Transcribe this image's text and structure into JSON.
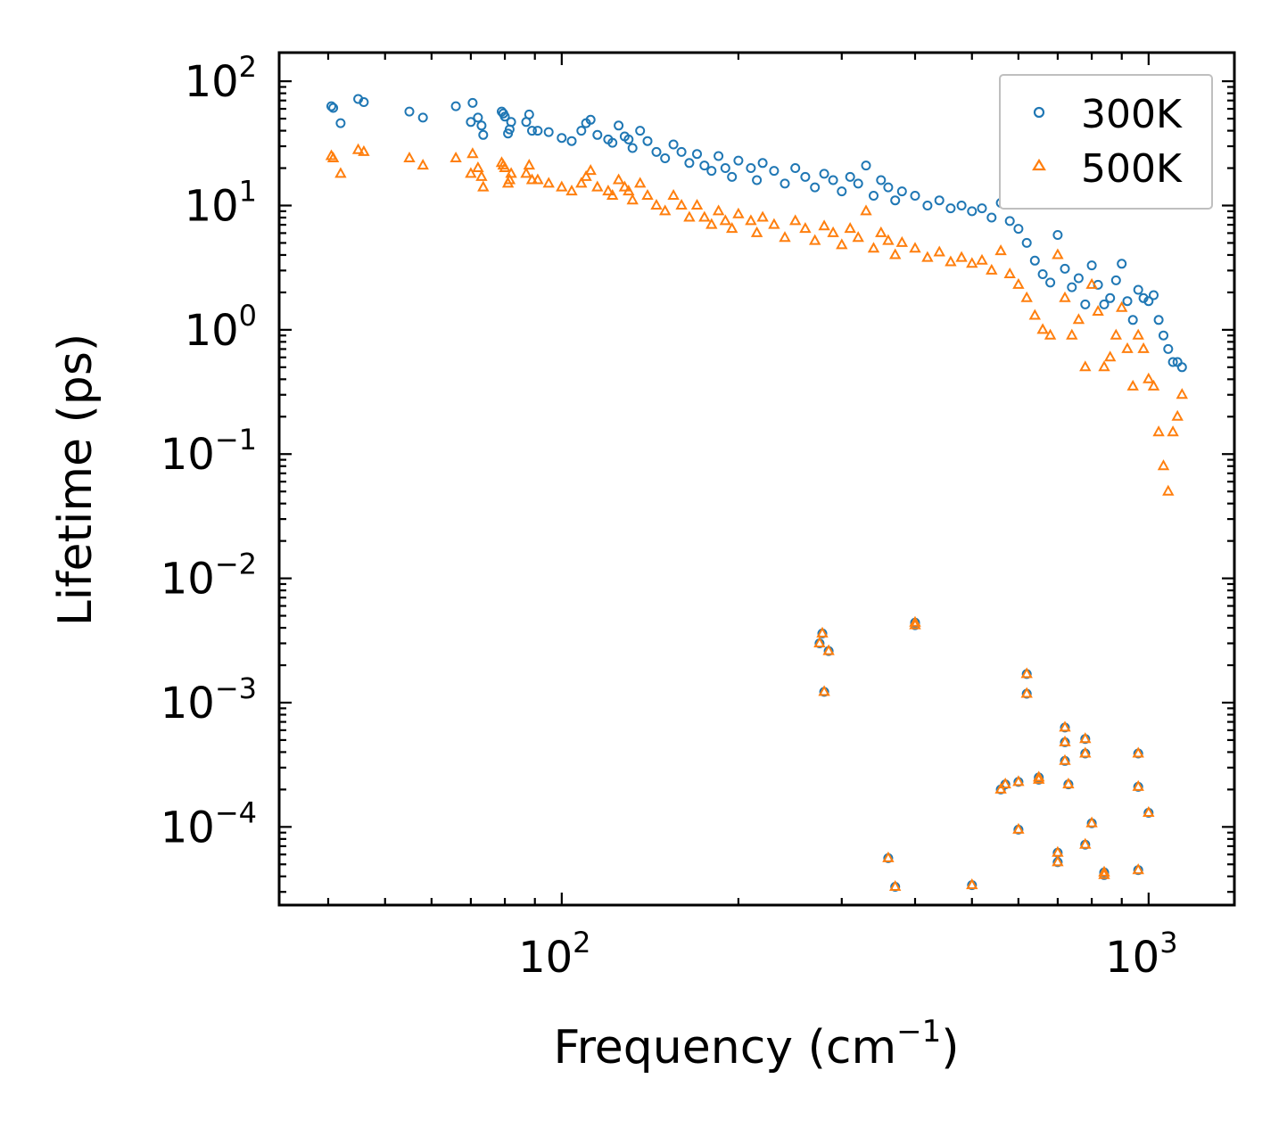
{
  "chart_data": {
    "type": "scatter",
    "title": "",
    "xlabel": "Frequency (cm",
    "xlabel_sup": "−1",
    "xlabel_close": ")",
    "ylabel": "Lifetime (ps)",
    "xscale": "log",
    "yscale": "log",
    "xlim": [
      33,
      1400
    ],
    "ylim": [
      2.35e-05,
      170
    ],
    "legend_position": "top-right",
    "x_ticks": [
      {
        "value": 100,
        "base": "10",
        "exp": "2"
      },
      {
        "value": 1000,
        "base": "10",
        "exp": "3"
      }
    ],
    "y_ticks": [
      {
        "value": 100,
        "base": "10",
        "exp": "2"
      },
      {
        "value": 10,
        "base": "10",
        "exp": "1"
      },
      {
        "value": 1,
        "base": "10",
        "exp": "0"
      },
      {
        "value": 0.1,
        "base": "10",
        "exp": "−1"
      },
      {
        "value": 0.01,
        "base": "10",
        "exp": "−2"
      },
      {
        "value": 0.001,
        "base": "10",
        "exp": "−3"
      },
      {
        "value": 0.0001,
        "base": "10",
        "exp": "−4"
      }
    ],
    "series": [
      {
        "name": "300K",
        "marker": "circle",
        "color": "#1f77b4",
        "points": [
          [
            40.5,
            63
          ],
          [
            40.8,
            61
          ],
          [
            42,
            46
          ],
          [
            45,
            72
          ],
          [
            46,
            68
          ],
          [
            55,
            57
          ],
          [
            58,
            51
          ],
          [
            66,
            63
          ],
          [
            70,
            47
          ],
          [
            70.5,
            67
          ],
          [
            72,
            51
          ],
          [
            73,
            44
          ],
          [
            73.5,
            37
          ],
          [
            79,
            57
          ],
          [
            79.5,
            55
          ],
          [
            80,
            52
          ],
          [
            81,
            38
          ],
          [
            81.5,
            41
          ],
          [
            82,
            47
          ],
          [
            87,
            47
          ],
          [
            88,
            54
          ],
          [
            89,
            40
          ],
          [
            91,
            40
          ],
          [
            95,
            39
          ],
          [
            100,
            35
          ],
          [
            104,
            33
          ],
          [
            108,
            40
          ],
          [
            110,
            46
          ],
          [
            112,
            49
          ],
          [
            115,
            37
          ],
          [
            120,
            34
          ],
          [
            122,
            32
          ],
          [
            125,
            44
          ],
          [
            128,
            36
          ],
          [
            130,
            34
          ],
          [
            132,
            29
          ],
          [
            136,
            40
          ],
          [
            140,
            33
          ],
          [
            145,
            27
          ],
          [
            150,
            24
          ],
          [
            155,
            31
          ],
          [
            160,
            27
          ],
          [
            165,
            22
          ],
          [
            170,
            26
          ],
          [
            175,
            21
          ],
          [
            180,
            19
          ],
          [
            185,
            25
          ],
          [
            190,
            20
          ],
          [
            195,
            17
          ],
          [
            200,
            23
          ],
          [
            210,
            20
          ],
          [
            215,
            16
          ],
          [
            220,
            22
          ],
          [
            230,
            19
          ],
          [
            240,
            15
          ],
          [
            250,
            20
          ],
          [
            260,
            17
          ],
          [
            270,
            14
          ],
          [
            280,
            18
          ],
          [
            290,
            16
          ],
          [
            300,
            13
          ],
          [
            310,
            17
          ],
          [
            320,
            15
          ],
          [
            330,
            21
          ],
          [
            340,
            12
          ],
          [
            350,
            16
          ],
          [
            360,
            14
          ],
          [
            370,
            11
          ],
          [
            380,
            13
          ],
          [
            400,
            12
          ],
          [
            420,
            10
          ],
          [
            440,
            11
          ],
          [
            460,
            9.5
          ],
          [
            480,
            10
          ],
          [
            500,
            9
          ],
          [
            520,
            9.5
          ],
          [
            540,
            8
          ],
          [
            560,
            10.5
          ],
          [
            580,
            7.5
          ],
          [
            600,
            6.5
          ],
          [
            620,
            5
          ],
          [
            640,
            3.6
          ],
          [
            660,
            2.8
          ],
          [
            680,
            2.4
          ],
          [
            700,
            5.8
          ],
          [
            720,
            3.1
          ],
          [
            740,
            2.2
          ],
          [
            760,
            2.6
          ],
          [
            780,
            1.6
          ],
          [
            800,
            3.3
          ],
          [
            820,
            2.3
          ],
          [
            840,
            1.6
          ],
          [
            860,
            1.8
          ],
          [
            880,
            2.5
          ],
          [
            900,
            3.4
          ],
          [
            920,
            1.7
          ],
          [
            940,
            1.2
          ],
          [
            960,
            2.1
          ],
          [
            980,
            1.8
          ],
          [
            1000,
            1.7
          ],
          [
            1020,
            1.9
          ],
          [
            1040,
            1.2
          ],
          [
            1060,
            0.9
          ],
          [
            1080,
            0.7
          ],
          [
            1100,
            0.55
          ],
          [
            1120,
            0.55
          ],
          [
            1140,
            0.5
          ],
          [
            275,
            0.003
          ],
          [
            278,
            0.0036
          ],
          [
            285,
            0.0026
          ],
          [
            280,
            0.00122
          ],
          [
            400,
            0.0044
          ],
          [
            400,
            0.0042
          ],
          [
            360,
            5.6e-05
          ],
          [
            370,
            3.3e-05
          ],
          [
            500,
            3.4e-05
          ],
          [
            560,
            0.0002
          ],
          [
            570,
            0.00022
          ],
          [
            600,
            0.00023
          ],
          [
            600,
            9.5e-05
          ],
          [
            620,
            0.0017
          ],
          [
            620,
            0.00118
          ],
          [
            650,
            0.00025
          ],
          [
            650,
            0.00024
          ],
          [
            700,
            6.2e-05
          ],
          [
            700,
            5.2e-05
          ],
          [
            720,
            0.00063
          ],
          [
            720,
            0.00048
          ],
          [
            720,
            0.00034
          ],
          [
            730,
            0.00022
          ],
          [
            780,
            0.00051
          ],
          [
            780,
            0.00039
          ],
          [
            780,
            7.2e-05
          ],
          [
            800,
            0.000107
          ],
          [
            840,
            4.3e-05
          ],
          [
            840,
            4.1e-05
          ],
          [
            960,
            0.00039
          ],
          [
            960,
            0.00021
          ],
          [
            960,
            4.5e-05
          ],
          [
            1000,
            0.00013
          ]
        ]
      },
      {
        "name": "500K",
        "marker": "triangle",
        "color": "#ff7f0e",
        "points": [
          [
            40.5,
            25
          ],
          [
            40.8,
            24
          ],
          [
            42,
            18
          ],
          [
            45,
            28
          ],
          [
            46,
            27
          ],
          [
            55,
            24
          ],
          [
            58,
            21
          ],
          [
            66,
            24
          ],
          [
            70,
            18
          ],
          [
            70.5,
            26
          ],
          [
            72,
            20
          ],
          [
            73,
            17
          ],
          [
            73.5,
            14
          ],
          [
            79,
            22
          ],
          [
            79.5,
            21
          ],
          [
            80,
            20
          ],
          [
            81,
            15
          ],
          [
            81.5,
            16
          ],
          [
            82,
            18
          ],
          [
            87,
            18
          ],
          [
            88,
            21
          ],
          [
            89,
            16
          ],
          [
            91,
            16
          ],
          [
            95,
            15
          ],
          [
            100,
            14
          ],
          [
            104,
            13
          ],
          [
            108,
            15
          ],
          [
            110,
            17
          ],
          [
            112,
            19
          ],
          [
            115,
            14
          ],
          [
            120,
            13
          ],
          [
            122,
            12
          ],
          [
            125,
            16
          ],
          [
            128,
            14
          ],
          [
            130,
            13
          ],
          [
            132,
            11
          ],
          [
            136,
            15
          ],
          [
            140,
            12
          ],
          [
            145,
            10
          ],
          [
            150,
            9
          ],
          [
            155,
            12
          ],
          [
            160,
            10
          ],
          [
            165,
            8
          ],
          [
            170,
            10
          ],
          [
            175,
            8
          ],
          [
            180,
            7
          ],
          [
            185,
            9
          ],
          [
            190,
            7.5
          ],
          [
            195,
            6.5
          ],
          [
            200,
            8.5
          ],
          [
            210,
            7.5
          ],
          [
            215,
            6
          ],
          [
            220,
            8
          ],
          [
            230,
            7
          ],
          [
            240,
            5.5
          ],
          [
            250,
            7.5
          ],
          [
            260,
            6.5
          ],
          [
            270,
            5.2
          ],
          [
            280,
            6.8
          ],
          [
            290,
            6
          ],
          [
            300,
            4.8
          ],
          [
            310,
            6.5
          ],
          [
            320,
            5.5
          ],
          [
            330,
            9.0
          ],
          [
            340,
            4.5
          ],
          [
            350,
            6
          ],
          [
            360,
            5.2
          ],
          [
            370,
            4
          ],
          [
            380,
            5
          ],
          [
            400,
            4.5
          ],
          [
            420,
            3.8
          ],
          [
            440,
            4.2
          ],
          [
            460,
            3.5
          ],
          [
            480,
            3.8
          ],
          [
            500,
            3.4
          ],
          [
            520,
            3.6
          ],
          [
            540,
            3
          ],
          [
            560,
            4.3
          ],
          [
            580,
            2.8
          ],
          [
            600,
            2.3
          ],
          [
            620,
            1.8
          ],
          [
            640,
            1.3
          ],
          [
            660,
            1.0
          ],
          [
            680,
            0.9
          ],
          [
            700,
            4.0
          ],
          [
            720,
            1.8
          ],
          [
            740,
            0.9
          ],
          [
            760,
            1.2
          ],
          [
            780,
            0.5
          ],
          [
            800,
            2.3
          ],
          [
            820,
            1.4
          ],
          [
            840,
            0.5
          ],
          [
            860,
            0.6
          ],
          [
            880,
            0.9
          ],
          [
            900,
            1.5
          ],
          [
            920,
            0.7
          ],
          [
            940,
            0.35
          ],
          [
            960,
            0.9
          ],
          [
            980,
            0.7
          ],
          [
            1000,
            0.4
          ],
          [
            1020,
            0.35
          ],
          [
            1040,
            0.15
          ],
          [
            1060,
            0.08
          ],
          [
            1080,
            0.05
          ],
          [
            1100,
            0.15
          ],
          [
            1120,
            0.2
          ],
          [
            1140,
            0.3
          ],
          [
            275,
            0.003
          ],
          [
            278,
            0.0036
          ],
          [
            285,
            0.0026
          ],
          [
            280,
            0.00122
          ],
          [
            400,
            0.0044
          ],
          [
            400,
            0.0042
          ],
          [
            360,
            5.6e-05
          ],
          [
            370,
            3.3e-05
          ],
          [
            500,
            3.4e-05
          ],
          [
            560,
            0.0002
          ],
          [
            570,
            0.00022
          ],
          [
            600,
            0.00023
          ],
          [
            600,
            9.5e-05
          ],
          [
            620,
            0.0017
          ],
          [
            620,
            0.00118
          ],
          [
            650,
            0.00025
          ],
          [
            650,
            0.00024
          ],
          [
            700,
            6.2e-05
          ],
          [
            700,
            5.2e-05
          ],
          [
            720,
            0.00063
          ],
          [
            720,
            0.00048
          ],
          [
            720,
            0.00034
          ],
          [
            730,
            0.00022
          ],
          [
            780,
            0.00051
          ],
          [
            780,
            0.00039
          ],
          [
            780,
            7.2e-05
          ],
          [
            800,
            0.000107
          ],
          [
            840,
            4.3e-05
          ],
          [
            840,
            4.1e-05
          ],
          [
            960,
            0.00039
          ],
          [
            960,
            0.00021
          ],
          [
            960,
            4.5e-05
          ],
          [
            1000,
            0.00013
          ]
        ]
      }
    ]
  }
}
